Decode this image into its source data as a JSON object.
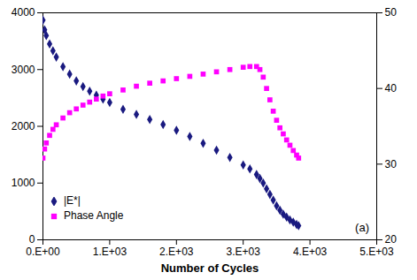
{
  "chart_data": {
    "type": "scatter",
    "x_label": "Number of Cycles",
    "annotations": [
      "(a)"
    ],
    "legend": "lower left",
    "grid": false,
    "x": [
      0,
      25,
      50,
      100,
      150,
      200,
      300,
      400,
      500,
      600,
      700,
      800,
      900,
      1000,
      1200,
      1400,
      1600,
      1800,
      2000,
      2200,
      2400,
      2600,
      2800,
      3000,
      3100,
      3200,
      3250,
      3300,
      3350,
      3400,
      3450,
      3500,
      3550,
      3600,
      3650,
      3700,
      3750,
      3800,
      3830
    ],
    "series": [
      {
        "name": "|E*|",
        "color": "#1a1a80",
        "marker": "diamond",
        "values": [
          3870,
          3700,
          3600,
          3450,
          3330,
          3220,
          3050,
          2920,
          2800,
          2700,
          2620,
          2550,
          2480,
          2420,
          2300,
          2210,
          2120,
          2030,
          1930,
          1820,
          1700,
          1580,
          1450,
          1320,
          1250,
          1150,
          1080,
          1000,
          900,
          800,
          700,
          600,
          520,
          450,
          400,
          350,
          310,
          270,
          250
        ]
      },
      {
        "name": "Phase Angle",
        "color": "#ff00ff",
        "marker": "square",
        "axis": "y2",
        "values": [
          30.8,
          32,
          32.8,
          33.8,
          34.6,
          35.2,
          36.1,
          36.8,
          37.3,
          37.8,
          38.2,
          38.6,
          39,
          39.3,
          39.8,
          40.3,
          40.7,
          41,
          41.3,
          41.6,
          41.9,
          42.2,
          42.5,
          42.8,
          42.9,
          42.9,
          42.5,
          41.5,
          40,
          38.5,
          37,
          35.8,
          34.8,
          34,
          33.2,
          32.5,
          31.8,
          31.2,
          30.8
        ]
      }
    ],
    "xlim": [
      0,
      5000
    ],
    "xticks": [
      {
        "value": 0,
        "label": "0.E+00"
      },
      {
        "value": 1000,
        "label": "1.E+03"
      },
      {
        "value": 2000,
        "label": "2.E+03"
      },
      {
        "value": 3000,
        "label": "3.E+03"
      },
      {
        "value": 4000,
        "label": "4.E+03"
      },
      {
        "value": 5000,
        "label": "5.E+03"
      }
    ],
    "ylim": [
      0,
      4000
    ],
    "yticks": [
      0,
      1000,
      2000,
      3000,
      4000
    ],
    "y2lim": [
      20,
      50
    ],
    "y2ticks": [
      20,
      30,
      40,
      50
    ]
  }
}
